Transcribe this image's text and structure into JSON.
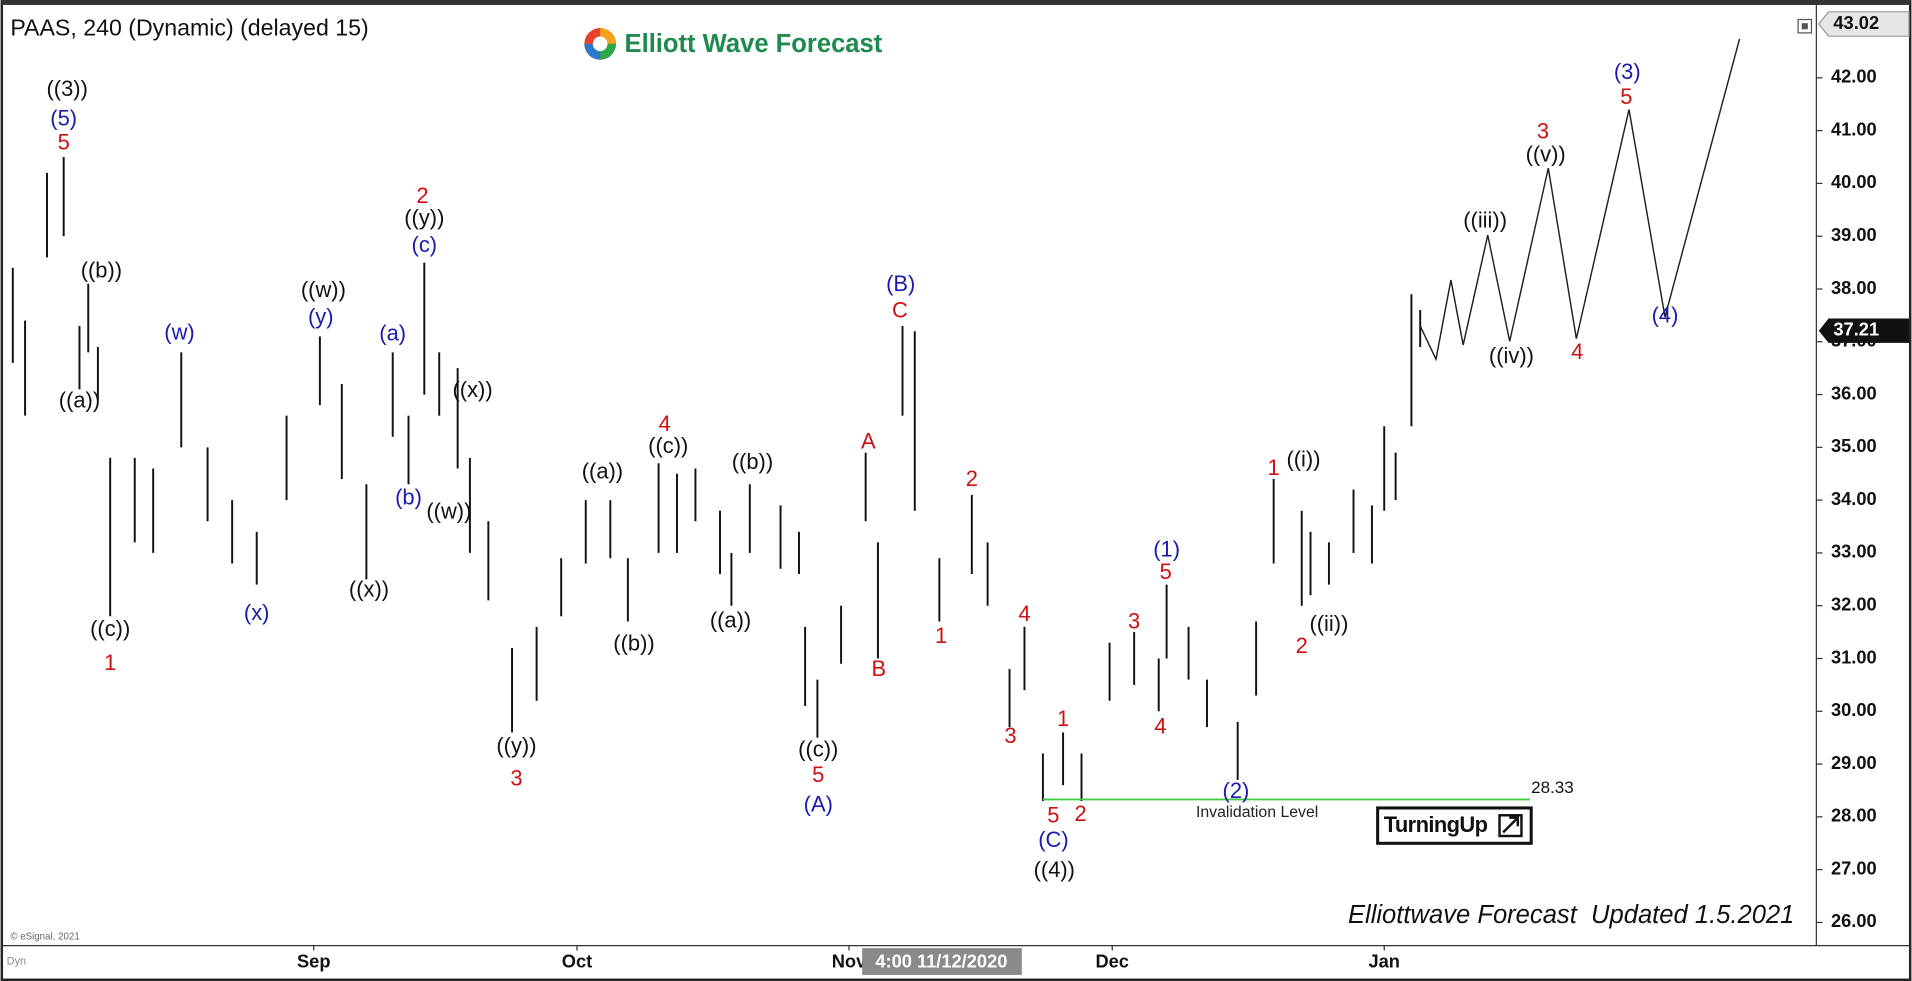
{
  "chart_data": {
    "type": "ohlc",
    "title": "PAAS, 240 (Dynamic) (delayed 15)",
    "color": "#111111",
    "x": [
      -3.3,
      -1.9,
      0.6,
      2.5,
      4.3,
      5.3,
      6.4,
      7.8,
      10.6,
      12.7,
      15.9,
      18.9,
      21.7,
      24.5,
      27.9,
      31.7,
      34.2,
      37.0,
      40.0,
      41.8,
      43.6,
      45.3,
      47.4,
      48.8,
      50.9,
      53.6,
      56.4,
      59.2,
      62.0,
      64.8,
      66.8,
      70.3,
      72.4,
      74.5,
      77.3,
      78.6,
      80.7,
      84.2,
      86.3,
      87.0,
      88.4,
      91.1,
      93.9,
      95.3,
      98.1,
      99.5,
      102.3,
      106.0,
      107.8,
      110.3,
      112.0,
      114.1,
      116.4,
      118.5,
      121.7,
      124.5,
      127.3,
      128.2,
      130.7,
      132.8,
      136.3,
      138.4,
      140.4,
      143.6,
      144.6,
      146.7,
      149.5,
      151.6,
      153.0,
      154.3,
      156.1,
      157.1
    ],
    "high": [
      38.4,
      37.4,
      40.2,
      40.5,
      37.3,
      38.1,
      36.9,
      34.8,
      34.8,
      34.6,
      36.8,
      35.0,
      34.0,
      33.4,
      35.6,
      37.1,
      36.2,
      34.3,
      36.8,
      35.6,
      38.5,
      36.8,
      36.5,
      34.8,
      33.6,
      31.2,
      31.6,
      32.9,
      34.0,
      34.0,
      32.9,
      34.7,
      34.5,
      34.6,
      33.8,
      33.0,
      34.3,
      33.9,
      33.4,
      31.6,
      30.6,
      32.0,
      34.9,
      33.2,
      37.3,
      37.2,
      32.9,
      34.1,
      33.2,
      30.8,
      31.6,
      29.2,
      29.6,
      29.2,
      31.3,
      31.5,
      31.0,
      32.4,
      31.6,
      30.6,
      29.8,
      31.7,
      34.4,
      33.8,
      33.4,
      33.2,
      34.2,
      33.9,
      35.4,
      34.9,
      37.9,
      37.6
    ],
    "low": [
      36.6,
      35.6,
      38.6,
      39.0,
      36.1,
      36.8,
      35.9,
      31.8,
      33.2,
      33.0,
      35.0,
      33.6,
      32.8,
      32.4,
      34.0,
      35.8,
      34.4,
      32.5,
      35.2,
      34.3,
      36.0,
      35.6,
      34.6,
      33.0,
      32.1,
      29.6,
      30.2,
      31.8,
      32.8,
      32.9,
      31.7,
      33.0,
      33.0,
      33.6,
      32.6,
      32.0,
      33.0,
      32.7,
      32.6,
      30.1,
      29.5,
      30.9,
      33.6,
      31.0,
      35.6,
      33.8,
      31.7,
      32.6,
      32.0,
      29.7,
      30.4,
      28.3,
      28.6,
      28.3,
      30.2,
      30.5,
      30.0,
      31.0,
      30.6,
      29.7,
      28.7,
      30.3,
      32.8,
      32.0,
      32.2,
      32.4,
      33.0,
      32.8,
      33.8,
      34.0,
      35.4,
      36.9
    ],
    "xlim": [
      -4.69,
      202.25
    ],
    "xticks": [
      {
        "value": 31,
        "label": "Sep"
      },
      {
        "value": 61,
        "label": "Oct"
      },
      {
        "value": 92,
        "label": "Nov"
      },
      {
        "value": 122,
        "label": "Dec"
      },
      {
        "value": 153,
        "label": "Jan"
      }
    ],
    "ylim": [
      25.56,
      43.29
    ],
    "yticks": [
      {
        "value": 26,
        "label": "26.00"
      },
      {
        "value": 27,
        "label": "27.00"
      },
      {
        "value": 28,
        "label": "28.00"
      },
      {
        "value": 29,
        "label": "29.00"
      },
      {
        "value": 30,
        "label": "30.00"
      },
      {
        "value": 31,
        "label": "31.00"
      },
      {
        "value": 32,
        "label": "32.00"
      },
      {
        "value": 33,
        "label": "33.00"
      },
      {
        "value": 34,
        "label": "34.00"
      },
      {
        "value": 35,
        "label": "35.00"
      },
      {
        "value": 36,
        "label": "36.00"
      },
      {
        "value": 37,
        "label": "37.00"
      },
      {
        "value": 38,
        "label": "38.00"
      },
      {
        "value": 39,
        "label": "39.00"
      },
      {
        "value": 40,
        "label": "40.00"
      },
      {
        "value": 41,
        "label": "41.00"
      },
      {
        "value": 42,
        "label": "42.00"
      }
    ],
    "high_tag": {
      "value": 43.02,
      "label": "43.02"
    },
    "last_price": {
      "value": 37.21,
      "label": "37.21"
    },
    "crosshair_label": "4:00 11/12/2020",
    "projection": {
      "color": "#222222",
      "x": [
        157.1,
        158.9,
        160.6,
        162.0,
        164.8,
        167.3,
        171.7,
        174.9,
        180.9,
        185.0,
        193.5
      ],
      "values": [
        37.3,
        36.67,
        38.17,
        36.94,
        39.02,
        37.01,
        40.29,
        37.06,
        41.4,
        37.47,
        42.74
      ]
    },
    "invalidation": {
      "label": "Invalidation Level",
      "value": 28.33,
      "value_label": "28.33",
      "x": [
        114.1,
        169.6
      ],
      "color": "#44cc44"
    },
    "wave_labels": [
      {
        "text": "((3))",
        "color": "#111111",
        "x": 2.9,
        "y": 41.77
      },
      {
        "text": "(5)",
        "color": "#1a1ab0",
        "x": 2.5,
        "y": 41.21
      },
      {
        "text": "5",
        "color": "#d01010",
        "x": 2.5,
        "y": 40.75
      },
      {
        "text": "((b))",
        "color": "#111111",
        "x": 6.8,
        "y": 38.33
      },
      {
        "text": "((a))",
        "color": "#111111",
        "x": 4.3,
        "y": 35.86
      },
      {
        "text": "((c))",
        "color": "#111111",
        "x": 7.8,
        "y": 31.54
      },
      {
        "text": "1",
        "color": "#d01010",
        "x": 7.8,
        "y": 30.89
      },
      {
        "text": "(w)",
        "color": "#1a1ab0",
        "x": 15.7,
        "y": 37.15
      },
      {
        "text": "(x)",
        "color": "#1a1ab0",
        "x": 24.5,
        "y": 31.84
      },
      {
        "text": "((w))",
        "color": "#111111",
        "x": 32.1,
        "y": 37.96
      },
      {
        "text": "(y)",
        "color": "#1a1ab0",
        "x": 31.8,
        "y": 37.45
      },
      {
        "text": "((x))",
        "color": "#111111",
        "x": 37.3,
        "y": 32.28
      },
      {
        "text": "(a)",
        "color": "#1a1ab0",
        "x": 40.0,
        "y": 37.13
      },
      {
        "text": "(b)",
        "color": "#1a1ab0",
        "x": 41.8,
        "y": 34.03
      },
      {
        "text": "2",
        "color": "#d01010",
        "x": 43.4,
        "y": 39.74
      },
      {
        "text": "((y))",
        "color": "#111111",
        "x": 43.6,
        "y": 39.32
      },
      {
        "text": "(c)",
        "color": "#1a1ab0",
        "x": 43.6,
        "y": 38.81
      },
      {
        "text": "((x))",
        "color": "#111111",
        "x": 49.1,
        "y": 36.06
      },
      {
        "text": "((w))",
        "color": "#111111",
        "x": 46.4,
        "y": 33.76
      },
      {
        "text": "((y))",
        "color": "#111111",
        "x": 54.1,
        "y": 29.32
      },
      {
        "text": "3",
        "color": "#d01010",
        "x": 54.1,
        "y": 28.7
      },
      {
        "text": "((a))",
        "color": "#111111",
        "x": 63.9,
        "y": 34.52
      },
      {
        "text": "((b))",
        "color": "#111111",
        "x": 67.5,
        "y": 31.26
      },
      {
        "text": "4",
        "color": "#d01010",
        "x": 71.0,
        "y": 35.42
      },
      {
        "text": "((c))",
        "color": "#111111",
        "x": 71.4,
        "y": 35.0
      },
      {
        "text": "((b))",
        "color": "#111111",
        "x": 81.0,
        "y": 34.7
      },
      {
        "text": "((a))",
        "color": "#111111",
        "x": 78.5,
        "y": 31.7
      },
      {
        "text": "((c))",
        "color": "#111111",
        "x": 88.5,
        "y": 29.25
      },
      {
        "text": "5",
        "color": "#d01010",
        "x": 88.5,
        "y": 28.77
      },
      {
        "text": "(A)",
        "color": "#1a1ab0",
        "x": 88.5,
        "y": 28.21
      },
      {
        "text": "A",
        "color": "#d01010",
        "x": 94.2,
        "y": 35.09
      },
      {
        "text": "B",
        "color": "#d01010",
        "x": 95.4,
        "y": 30.78
      },
      {
        "text": "(B)",
        "color": "#1a1ab0",
        "x": 97.9,
        "y": 38.07
      },
      {
        "text": "C",
        "color": "#d01010",
        "x": 97.8,
        "y": 37.57
      },
      {
        "text": "2",
        "color": "#d01010",
        "x": 106.0,
        "y": 34.38
      },
      {
        "text": "1",
        "color": "#d01010",
        "x": 102.5,
        "y": 31.4
      },
      {
        "text": "4",
        "color": "#d01010",
        "x": 112.0,
        "y": 31.82
      },
      {
        "text": "3",
        "color": "#d01010",
        "x": 110.4,
        "y": 29.51
      },
      {
        "text": "5",
        "color": "#d01010",
        "x": 115.3,
        "y": 28.0
      },
      {
        "text": "(C)",
        "color": "#1a1ab0",
        "x": 115.3,
        "y": 27.54
      },
      {
        "text": "((4))",
        "color": "#111111",
        "x": 115.4,
        "y": 26.97
      },
      {
        "text": "1",
        "color": "#d01010",
        "x": 116.4,
        "y": 29.83
      },
      {
        "text": "2",
        "color": "#d01010",
        "x": 118.4,
        "y": 28.03
      },
      {
        "text": "3",
        "color": "#d01010",
        "x": 124.5,
        "y": 31.68
      },
      {
        "text": "4",
        "color": "#d01010",
        "x": 127.5,
        "y": 29.69
      },
      {
        "text": "(1)",
        "color": "#1a1ab0",
        "x": 128.2,
        "y": 33.04
      },
      {
        "text": "5",
        "color": "#d01010",
        "x": 128.1,
        "y": 32.62
      },
      {
        "text": "(2)",
        "color": "#1a1ab0",
        "x": 136.1,
        "y": 28.47
      },
      {
        "text": "1",
        "color": "#d01010",
        "x": 140.4,
        "y": 34.59
      },
      {
        "text": "((i))",
        "color": "#111111",
        "x": 143.8,
        "y": 34.75
      },
      {
        "text": "2",
        "color": "#d01010",
        "x": 143.6,
        "y": 31.21
      },
      {
        "text": "((ii))",
        "color": "#111111",
        "x": 146.7,
        "y": 31.63
      },
      {
        "text": "((iii))",
        "color": "#111111",
        "x": 164.5,
        "y": 39.27
      },
      {
        "text": "((iv))",
        "color": "#111111",
        "x": 167.5,
        "y": 36.71
      },
      {
        "text": "((v))",
        "color": "#111111",
        "x": 171.4,
        "y": 40.52
      },
      {
        "text": "3",
        "color": "#d01010",
        "x": 171.1,
        "y": 40.96
      },
      {
        "text": "4",
        "color": "#d01010",
        "x": 175.0,
        "y": 36.78
      },
      {
        "text": "(3)",
        "color": "#1a1ab0",
        "x": 180.7,
        "y": 42.09
      },
      {
        "text": "5",
        "color": "#d01010",
        "x": 180.6,
        "y": 41.61
      },
      {
        "text": "(4)",
        "color": "#1a1ab0",
        "x": 185.0,
        "y": 37.47
      }
    ]
  },
  "branding": {
    "logo": "Elliott Wave Forecast",
    "footer": "Elliottwave Forecast  Updated 1.5.2021",
    "badge": "TurningUp",
    "copyright": "© eSignal, 2021",
    "corner": "Dyn"
  }
}
